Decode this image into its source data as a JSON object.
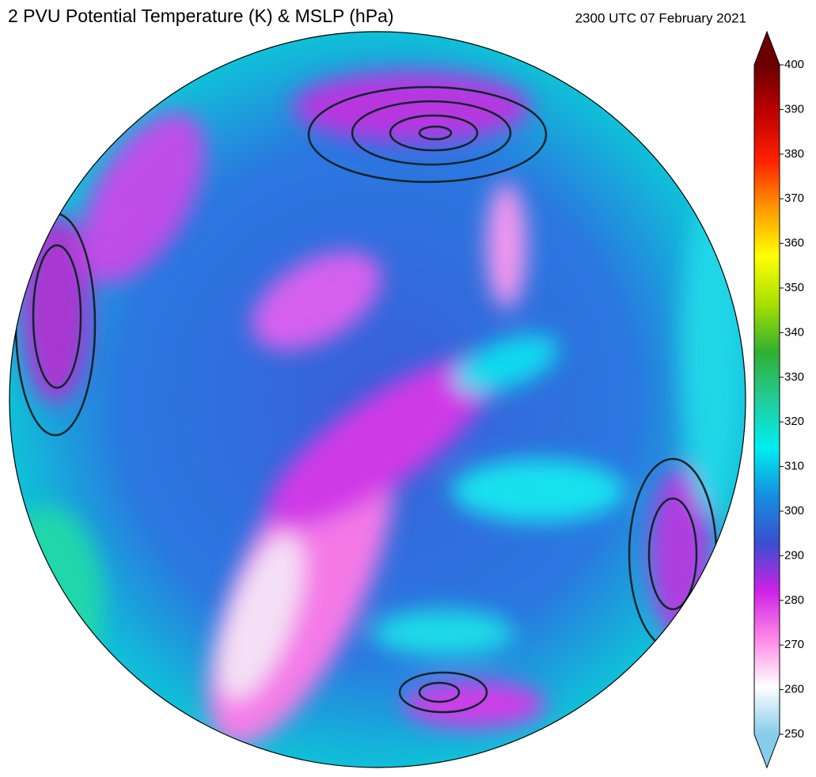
{
  "header": {
    "title": "2 PVU Potential Temperature (K) & MSLP (hPa)",
    "timestamp": "2300 UTC 07 February 2021"
  },
  "colorbar": {
    "lim": [
      250,
      400
    ],
    "ticks": [
      250,
      260,
      270,
      280,
      290,
      300,
      310,
      320,
      330,
      340,
      350,
      360,
      370,
      380,
      390,
      400
    ],
    "colors": [
      "#87cdea",
      "#ffffff",
      "#ff88e6",
      "#cc22e6",
      "#3a4fd0",
      "#1490e0",
      "#00eef0",
      "#22cc99",
      "#30b030",
      "#a6e000",
      "#ffff00",
      "#ff9900",
      "#ff2000",
      "#c00000",
      "#6a0000"
    ]
  }
}
